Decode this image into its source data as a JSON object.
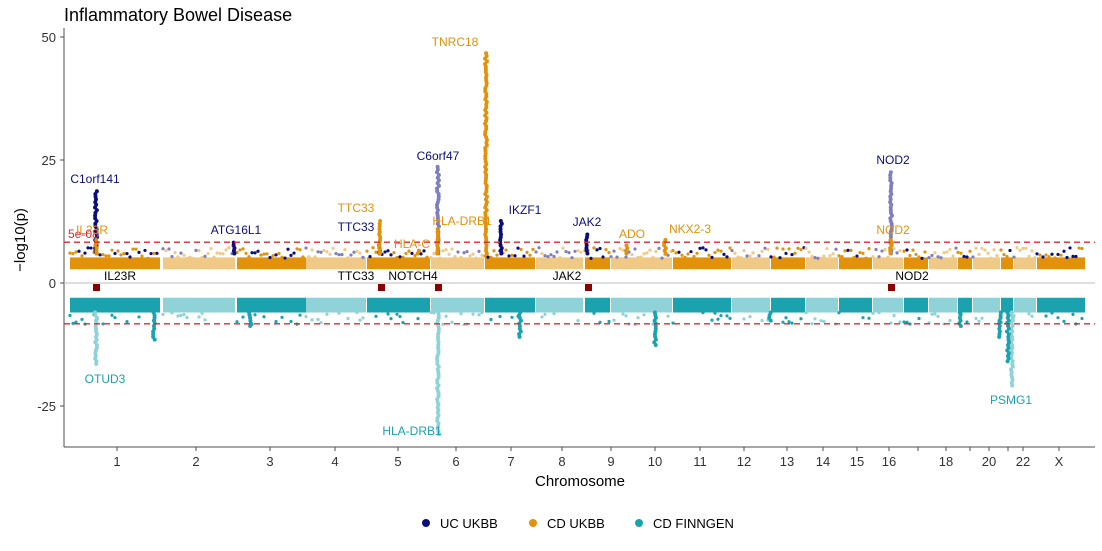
{
  "chart_data": {
    "type": "scatter",
    "subtype": "miami-manhattan",
    "title": "Inflammatory Bowel Disease",
    "xlabel": "Chromosome",
    "ylabel": "−log10(p)",
    "ylim": [
      -33,
      50
    ],
    "yticks": [
      50,
      25,
      0,
      -25
    ],
    "ytick_labels": [
      "50",
      "25",
      "0",
      "-25"
    ],
    "threshold_label": "5e-08",
    "threshold_value": 8.3,
    "chromosome_labels": [
      "1",
      "2",
      "3",
      "4",
      "5",
      "6",
      "7",
      "8",
      "9",
      "10",
      "11",
      "12",
      "13",
      "14",
      "15",
      "16",
      "18",
      "20",
      "22",
      "X"
    ],
    "colors": {
      "uc_ukbb": "#0b0d7a",
      "uc_ukbb_alt": "#7f7fbe",
      "cd_ukbb": "#e2910a",
      "cd_ukbb_alt": "#f0c987",
      "cd_finngen": "#1aa3ae",
      "cd_finngen_alt": "#8fd2d8",
      "threshold": "#e3272c",
      "marker": "#8b0000"
    },
    "series": [
      {
        "name": "UC UKBB",
        "color": "#0b0d7a",
        "peaks": [
          {
            "chr": 1,
            "p": 19,
            "label": "C1orf141"
          },
          {
            "chr": 2,
            "p": 8.5,
            "label": "ATG16L1"
          },
          {
            "chr": 4,
            "p": 8,
            "label": "TTC33"
          },
          {
            "chr": 5.6,
            "p": 24,
            "label": "C6orf47"
          },
          {
            "chr": 7,
            "p": 13,
            "label": "IKZF1"
          },
          {
            "chr": 9,
            "p": 10,
            "label": "JAK2"
          },
          {
            "chr": 16,
            "p": 23,
            "label": "NOD2"
          }
        ]
      },
      {
        "name": "CD UKBB",
        "color": "#e2910a",
        "peaks": [
          {
            "chr": 1,
            "p": 9,
            "label": "IL23R"
          },
          {
            "chr": 5,
            "p": 13,
            "label": "TTC33"
          },
          {
            "chr": 5.4,
            "p": 7,
            "label": "HLA-C"
          },
          {
            "chr": 6.1,
            "p": 47,
            "label": "TNRC18"
          },
          {
            "chr": 6,
            "p": 11,
            "label": "HLA-DRB1"
          },
          {
            "chr": 9.6,
            "p": 8,
            "label": "ADO"
          },
          {
            "chr": 10.4,
            "p": 9,
            "label": "NKX2-3"
          },
          {
            "chr": 16,
            "p": 9,
            "label": "NOD2"
          }
        ]
      },
      {
        "name": "CD FINNGEN",
        "color": "#1aa3ae",
        "peaks": [
          {
            "chr": 1,
            "p": -17,
            "label": "OTUD3"
          },
          {
            "chr": 6,
            "p": -31,
            "label": "HLA-DRB1"
          },
          {
            "chr": 21,
            "p": -21,
            "label": "PSMG1"
          }
        ]
      }
    ],
    "shared_loci": [
      "IL23R",
      "TTC33",
      "NOTCH4",
      "JAK2",
      "NOD2"
    ],
    "legend": {
      "position": "bottom",
      "entries": [
        "UC UKBB",
        "CD UKBB",
        "CD FINNGEN"
      ]
    }
  }
}
